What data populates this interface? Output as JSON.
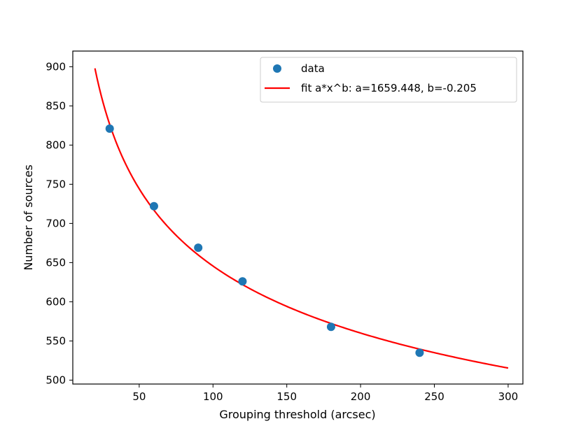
{
  "chart_data": {
    "type": "scatter",
    "xlabel": "Grouping threshold (arcsec)",
    "ylabel": "Number of sources",
    "xlim": [
      5,
      310
    ],
    "ylim": [
      495,
      920
    ],
    "xticks": [
      50,
      100,
      150,
      200,
      250,
      300
    ],
    "yticks": [
      500,
      550,
      600,
      650,
      700,
      750,
      800,
      850,
      900
    ],
    "grid": false,
    "legend_position": "top-right",
    "series": [
      {
        "name": "data",
        "kind": "points",
        "color": "#1f77b4",
        "x": [
          30,
          60,
          90,
          120,
          180,
          240
        ],
        "y": [
          821,
          722,
          669,
          626,
          568,
          535
        ]
      },
      {
        "name": "fit a*x^b: a=1659.448, b=-0.205",
        "kind": "line",
        "color": "#ff0000",
        "function": "power",
        "a": 1659.448,
        "b": -0.205,
        "x_range": [
          20,
          300
        ]
      }
    ]
  }
}
